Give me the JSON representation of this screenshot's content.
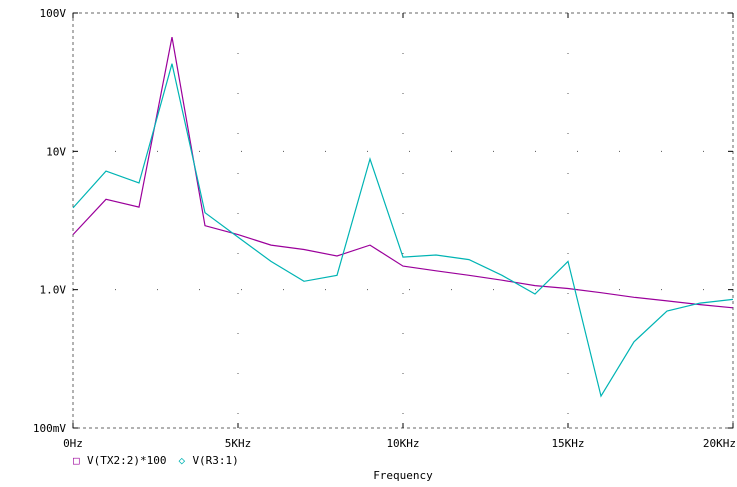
{
  "chart_data": {
    "type": "line",
    "xlabel": "Frequency",
    "x_ticks": [
      {
        "value": 0,
        "label": "0Hz"
      },
      {
        "value": 5000,
        "label": "5KHz"
      },
      {
        "value": 10000,
        "label": "10KHz"
      },
      {
        "value": 15000,
        "label": "15KHz"
      },
      {
        "value": 20000,
        "label": "20KHz"
      }
    ],
    "y_ticks": [
      {
        "value": 0.1,
        "label": "100mV"
      },
      {
        "value": 1,
        "label": "1.0V"
      },
      {
        "value": 10,
        "label": "10V"
      },
      {
        "value": 100,
        "label": "100V"
      }
    ],
    "xlim": [
      0,
      20000
    ],
    "ylim": [
      0.1,
      100
    ],
    "y_scale": "log",
    "grid": "dotted",
    "legend_position": "bottom-left",
    "x": [
      0,
      1000,
      2000,
      3000,
      4000,
      5000,
      6000,
      7000,
      8000,
      9000,
      10000,
      11000,
      12000,
      13000,
      14000,
      15000,
      16000,
      17000,
      18000,
      19000,
      20000
    ],
    "series": [
      {
        "name": "V(TX2:2)*100",
        "marker": "□",
        "color": "#9b009b",
        "values": [
          2.5,
          4.5,
          3.95,
          67,
          2.9,
          2.5,
          2.1,
          1.95,
          1.75,
          2.1,
          1.48,
          1.37,
          1.27,
          1.17,
          1.07,
          1.02,
          0.95,
          0.88,
          0.83,
          0.78,
          0.74
        ]
      },
      {
        "name": "V(R3:1)",
        "marker": "◇",
        "color": "#00b4b4",
        "values": [
          3.9,
          7.2,
          5.9,
          43,
          3.6,
          2.4,
          1.6,
          1.15,
          1.27,
          8.8,
          1.72,
          1.78,
          1.65,
          1.27,
          0.93,
          1.6,
          0.17,
          0.42,
          0.7,
          0.8,
          0.85
        ]
      }
    ]
  }
}
